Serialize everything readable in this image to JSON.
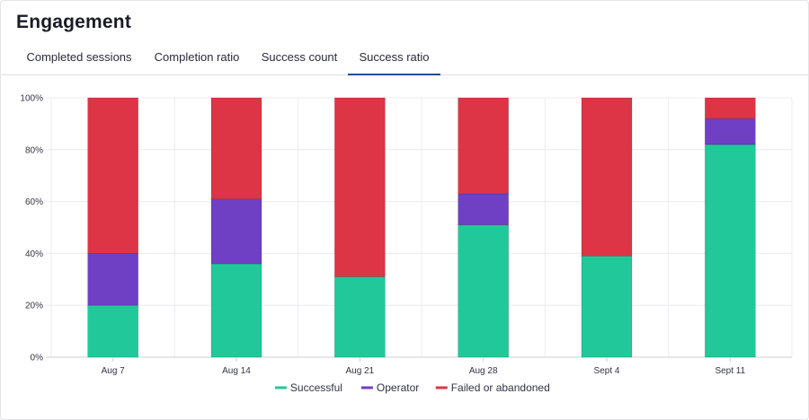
{
  "header": {
    "title": "Engagement"
  },
  "tabs": [
    {
      "label": "Completed sessions",
      "active": false
    },
    {
      "label": "Completion ratio",
      "active": false
    },
    {
      "label": "Success count",
      "active": false
    },
    {
      "label": "Success ratio",
      "active": true
    }
  ],
  "colors": {
    "successful": "#21c99a",
    "operator": "#6f3fc4",
    "failed": "#dd3545",
    "grid": "#ececf0",
    "axis": "#cfcfd6",
    "active_tab": "#1d4f8c"
  },
  "chart_data": {
    "type": "bar",
    "stacked": true,
    "categories": [
      "Aug 7",
      "Aug 14",
      "Aug 21",
      "Aug 28",
      "Sept 4",
      "Sept 11"
    ],
    "series": [
      {
        "name": "Successful",
        "color": "#21c99a",
        "values": [
          20,
          36,
          31,
          51,
          39,
          82
        ]
      },
      {
        "name": "Operator",
        "color": "#6f3fc4",
        "values": [
          20,
          25,
          0,
          12,
          0,
          10
        ]
      },
      {
        "name": "Failed or abandoned",
        "color": "#dd3545",
        "values": [
          60,
          39,
          69,
          37,
          61,
          8
        ]
      }
    ],
    "ylim": [
      0,
      100
    ],
    "yticks": [
      "0%",
      "20%",
      "40%",
      "60%",
      "80%",
      "100%"
    ],
    "ytick_values": [
      0,
      20,
      40,
      60,
      80,
      100
    ],
    "grid": true,
    "legend_position": "bottom-center"
  }
}
